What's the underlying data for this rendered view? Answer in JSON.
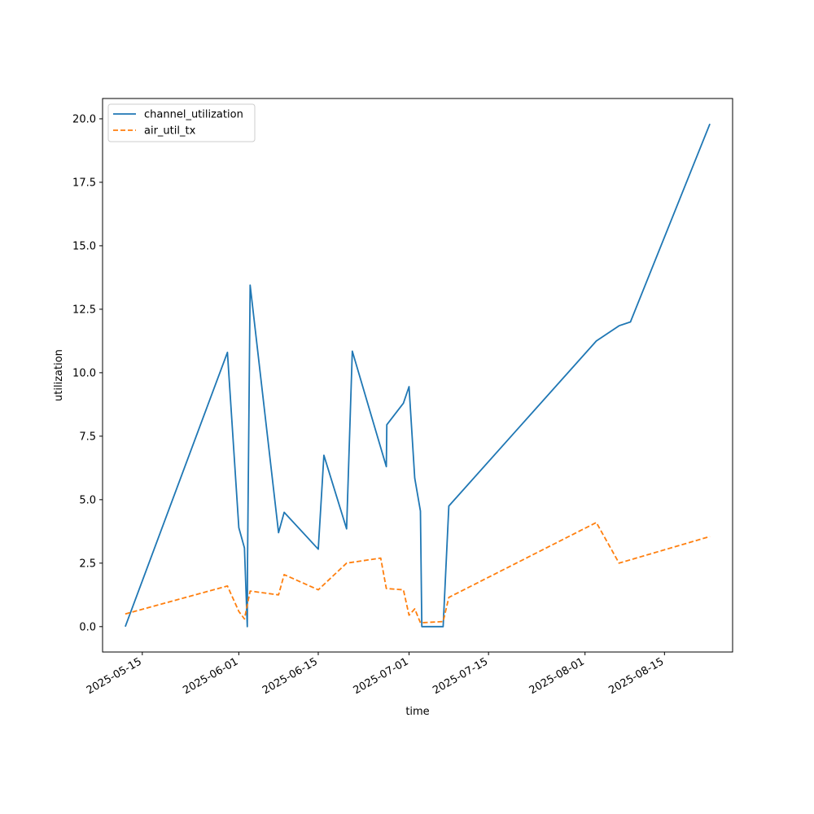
{
  "chart_data": {
    "type": "line",
    "xlabel": "time",
    "ylabel": "utilization",
    "xlim": [
      "2025-05-08",
      "2025-08-27"
    ],
    "ylim": [
      -1.0,
      20.8
    ],
    "x_ticks": [
      "2025-05-15",
      "2025-06-01",
      "2025-06-15",
      "2025-07-01",
      "2025-07-15",
      "2025-08-01",
      "2025-08-15"
    ],
    "y_ticks": [
      0.0,
      2.5,
      5.0,
      7.5,
      10.0,
      12.5,
      15.0,
      17.5,
      20.0
    ],
    "y_tick_labels": [
      "0.0",
      "2.5",
      "5.0",
      "7.5",
      "10.0",
      "12.5",
      "15.0",
      "17.5",
      "20.0"
    ],
    "grid": false,
    "legend": "top-left",
    "series": [
      {
        "name": "channel_utilization",
        "color": "#1f77b4",
        "style": "solid",
        "points": [
          [
            "2025-05-12",
            0.0
          ],
          [
            "2025-05-30",
            10.8
          ],
          [
            "2025-06-01",
            3.9
          ],
          [
            "2025-06-02",
            3.1
          ],
          [
            "2025-06-02T12:00",
            0.0
          ],
          [
            "2025-06-02T13:00",
            2.6
          ],
          [
            "2025-06-03",
            13.45
          ],
          [
            "2025-06-08",
            3.7
          ],
          [
            "2025-06-09",
            4.5
          ],
          [
            "2025-06-15",
            3.05
          ],
          [
            "2025-06-16",
            6.75
          ],
          [
            "2025-06-20",
            3.85
          ],
          [
            "2025-06-21",
            10.85
          ],
          [
            "2025-06-27",
            6.3
          ],
          [
            "2025-06-27T02:00",
            7.95
          ],
          [
            "2025-06-30",
            8.8
          ],
          [
            "2025-07-01",
            9.45
          ],
          [
            "2025-07-02",
            5.85
          ],
          [
            "2025-07-03",
            4.55
          ],
          [
            "2025-07-03T06:00",
            0.0
          ],
          [
            "2025-07-07",
            0.0
          ],
          [
            "2025-07-08",
            4.75
          ],
          [
            "2025-08-03",
            11.25
          ],
          [
            "2025-08-07",
            11.85
          ],
          [
            "2025-08-09",
            12.0
          ],
          [
            "2025-08-23",
            19.8
          ]
        ]
      },
      {
        "name": "air_util_tx",
        "color": "#ff7f0e",
        "style": "dashed",
        "points": [
          [
            "2025-05-12",
            0.5
          ],
          [
            "2025-05-30",
            1.6
          ],
          [
            "2025-06-01",
            0.6
          ],
          [
            "2025-06-02",
            0.3
          ],
          [
            "2025-06-03",
            1.4
          ],
          [
            "2025-06-08",
            1.25
          ],
          [
            "2025-06-09",
            2.05
          ],
          [
            "2025-06-15",
            1.45
          ],
          [
            "2025-06-20",
            2.5
          ],
          [
            "2025-06-26",
            2.7
          ],
          [
            "2025-06-27",
            1.5
          ],
          [
            "2025-06-30",
            1.45
          ],
          [
            "2025-07-01",
            0.45
          ],
          [
            "2025-07-02",
            0.7
          ],
          [
            "2025-07-03",
            0.15
          ],
          [
            "2025-07-07",
            0.2
          ],
          [
            "2025-07-08",
            1.15
          ],
          [
            "2025-08-03",
            4.1
          ],
          [
            "2025-08-07",
            2.5
          ],
          [
            "2025-08-23",
            3.55
          ]
        ]
      }
    ]
  }
}
